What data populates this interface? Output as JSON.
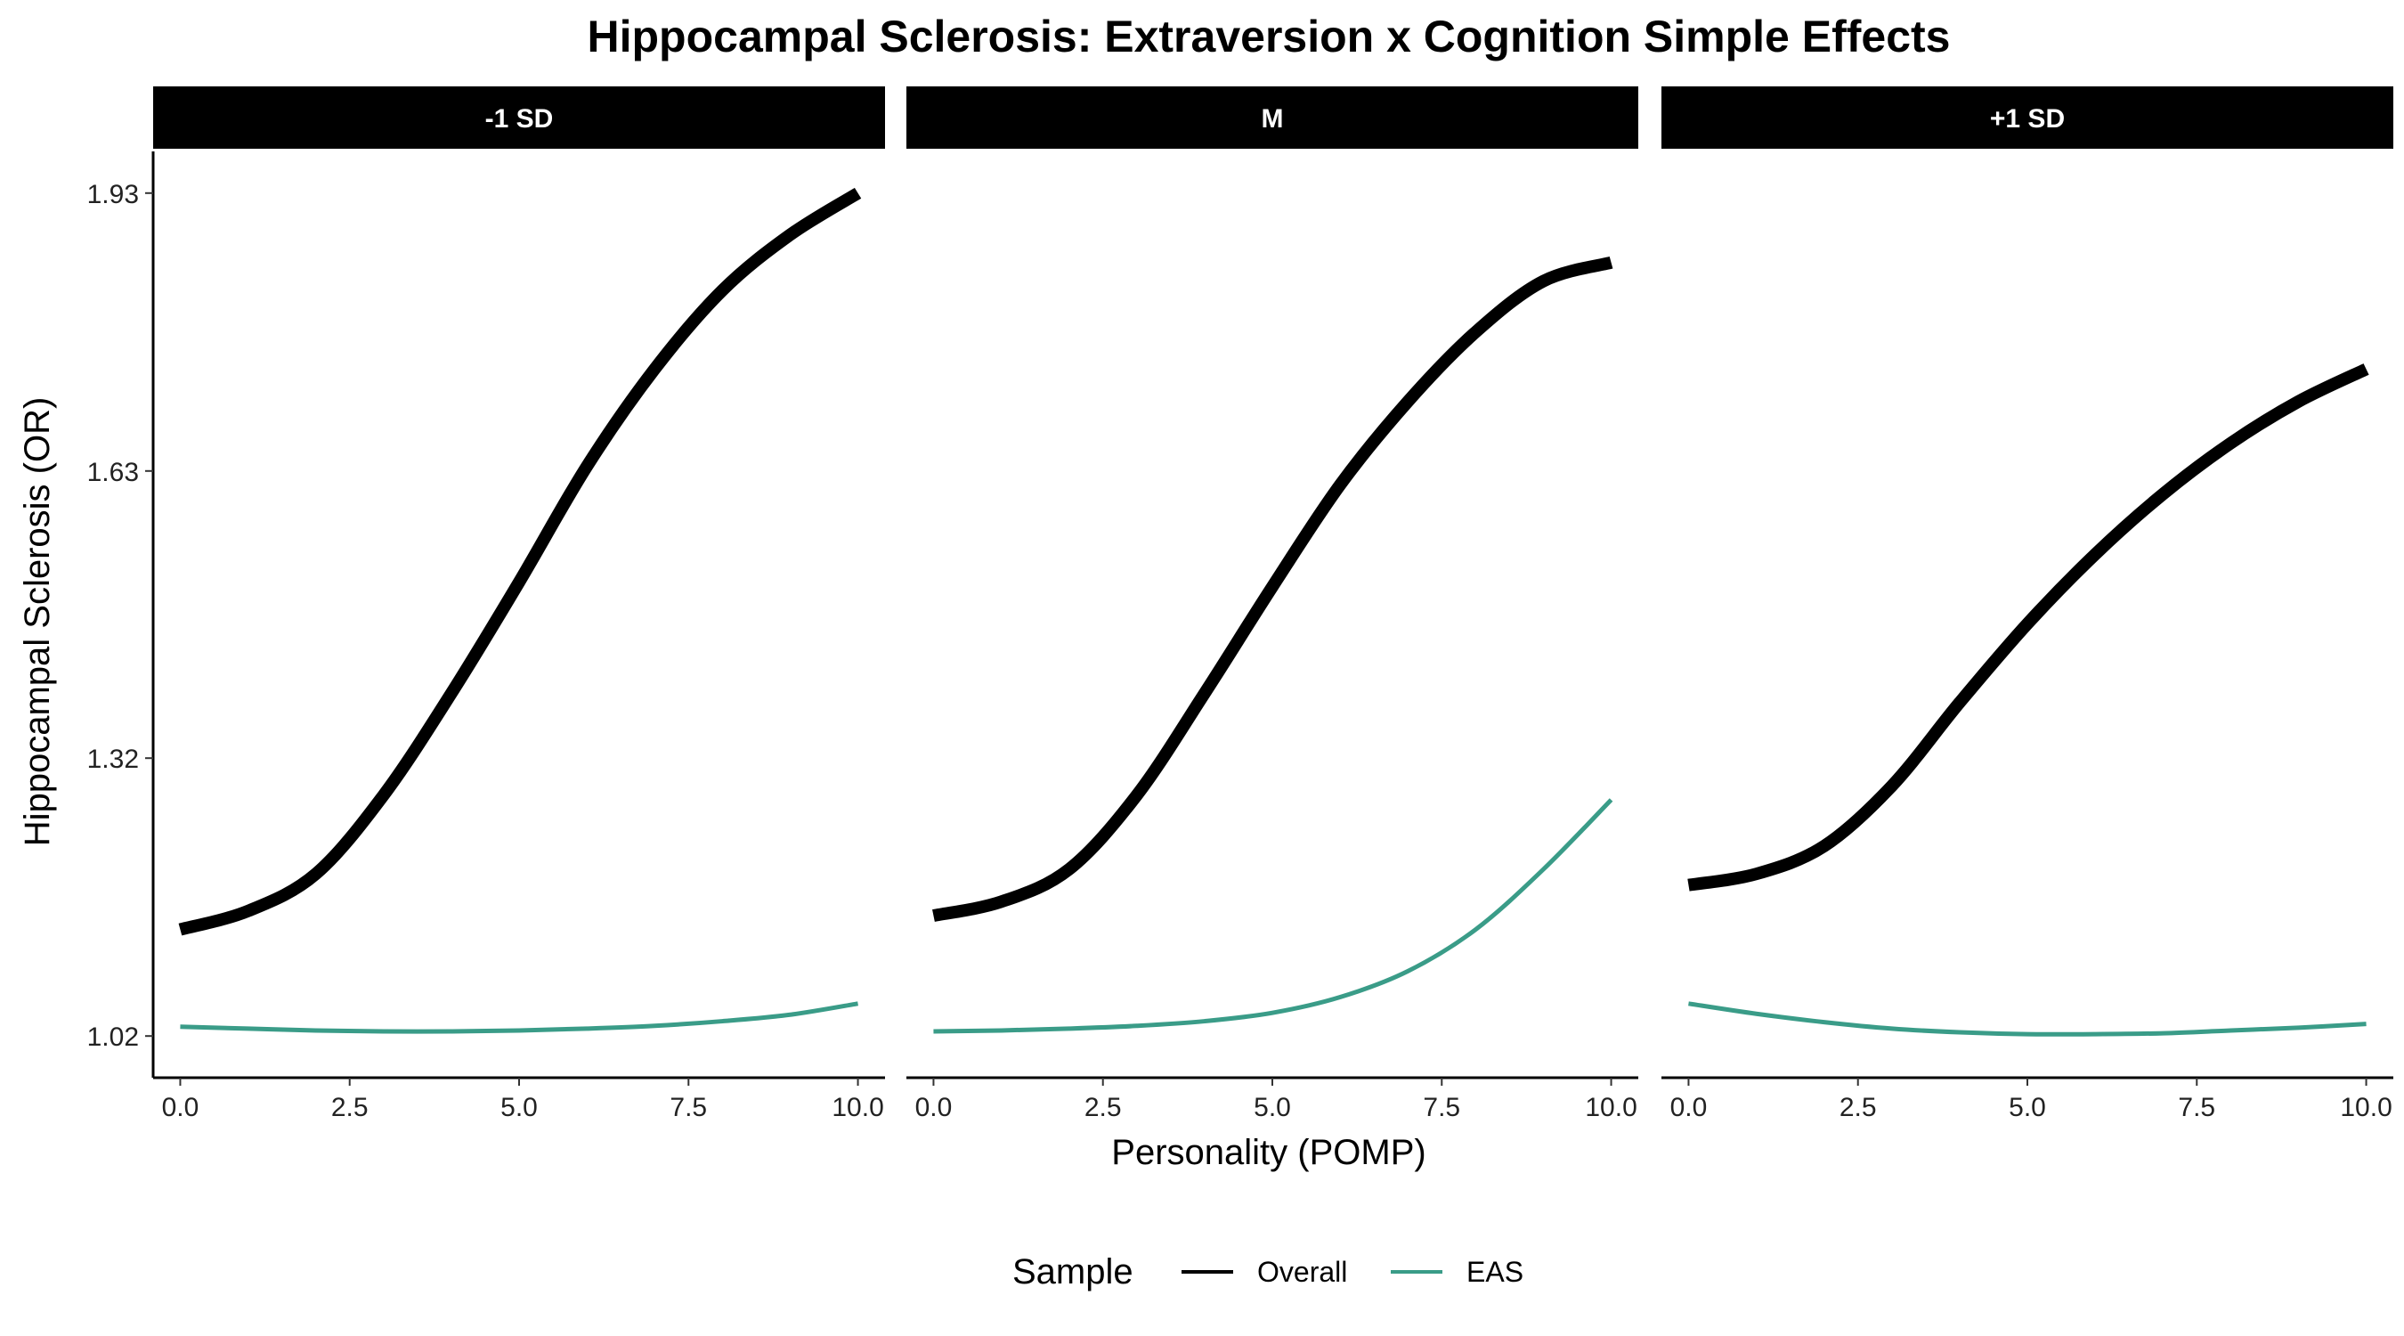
{
  "chart_data": {
    "type": "line",
    "title": "Hippocampal Sclerosis: Extraversion x Cognition Simple Effects",
    "xlabel": "Personality (POMP)",
    "ylabel": "Hippocampal Sclerosis (OR)",
    "xlim": [
      -0.4,
      10.4
    ],
    "ylim": [
      0.975,
      1.975
    ],
    "x_ticks": [
      0,
      2.5,
      5,
      7.5,
      10
    ],
    "x_tick_labels": [
      "0.0",
      "2.5",
      "5.0",
      "7.5",
      "10.0"
    ],
    "y_ticks": [
      1.02,
      1.32,
      1.63,
      1.93
    ],
    "y_tick_labels": [
      "1.02",
      "1.32",
      "1.63",
      "1.93"
    ],
    "grid": false,
    "legend": {
      "title": "Sample",
      "position": "bottom",
      "entries": [
        {
          "label": "Overall",
          "color": "#000000"
        },
        {
          "label": "EAS",
          "color": "#3a9c88"
        }
      ]
    },
    "panels": [
      {
        "label": "-1 SD",
        "series": [
          {
            "name": "Overall",
            "color": "#000000",
            "x": [
              0,
              1,
              2,
              3,
              4,
              5,
              6,
              7,
              8,
              9,
              10
            ],
            "y": [
              1.135,
              1.155,
              1.195,
              1.28,
              1.39,
              1.51,
              1.635,
              1.74,
              1.825,
              1.885,
              1.93
            ]
          },
          {
            "name": "EAS",
            "color": "#3a9c88",
            "x": [
              0,
              1,
              2,
              3,
              4,
              5,
              6,
              7,
              8,
              9,
              10
            ],
            "y": [
              1.03,
              1.028,
              1.026,
              1.025,
              1.025,
              1.026,
              1.028,
              1.031,
              1.036,
              1.043,
              1.055
            ]
          }
        ]
      },
      {
        "label": "M",
        "series": [
          {
            "name": "Overall",
            "color": "#000000",
            "x": [
              0,
              1,
              2,
              3,
              4,
              5,
              6,
              7,
              8,
              9,
              10
            ],
            "y": [
              1.15,
              1.165,
              1.2,
              1.28,
              1.39,
              1.505,
              1.615,
              1.705,
              1.78,
              1.835,
              1.855
            ]
          },
          {
            "name": "EAS",
            "color": "#3a9c88",
            "x": [
              0,
              1,
              2,
              3,
              4,
              5,
              6,
              7,
              8,
              9,
              10
            ],
            "y": [
              1.025,
              1.026,
              1.028,
              1.031,
              1.036,
              1.045,
              1.062,
              1.09,
              1.135,
              1.2,
              1.275
            ]
          }
        ]
      },
      {
        "label": "+1 SD",
        "series": [
          {
            "name": "Overall",
            "color": "#000000",
            "x": [
              0,
              1,
              2,
              3,
              4,
              5,
              6,
              7,
              8,
              9,
              10
            ],
            "y": [
              1.183,
              1.195,
              1.225,
              1.29,
              1.38,
              1.465,
              1.54,
              1.605,
              1.66,
              1.705,
              1.74
            ]
          },
          {
            "name": "EAS",
            "color": "#3a9c88",
            "x": [
              0,
              1,
              2,
              3,
              4,
              5,
              6,
              7,
              8,
              9,
              10
            ],
            "y": [
              1.055,
              1.044,
              1.035,
              1.028,
              1.024,
              1.022,
              1.022,
              1.023,
              1.026,
              1.029,
              1.033
            ]
          }
        ]
      }
    ]
  }
}
